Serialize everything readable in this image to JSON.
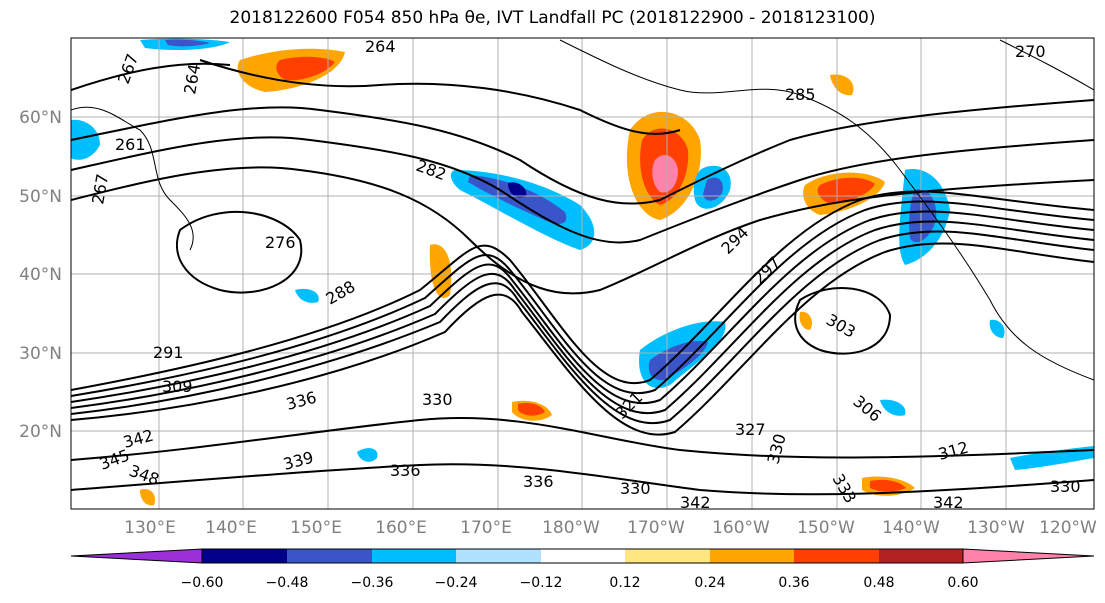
{
  "title": "2018122600 F054 850 hPa θe, IVT Landfall PC (2018122900 - 2018123100)",
  "map": {
    "lat_labels": [
      "60°N",
      "50°N",
      "40°N",
      "30°N",
      "20°N"
    ],
    "lon_labels": [
      "130°E",
      "140°E",
      "150°E",
      "160°E",
      "170°E",
      "180°W",
      "170°W",
      "160°W",
      "150°W",
      "140°W",
      "130°W",
      "120°W"
    ],
    "contour_labels": [
      "264",
      "267",
      "264",
      "261",
      "267",
      "282",
      "276",
      "285",
      "270",
      "288",
      "291",
      "294",
      "297",
      "303",
      "309",
      "306",
      "312",
      "330",
      "336",
      "339",
      "342",
      "345",
      "348",
      "336",
      "330",
      "321",
      "327",
      "330",
      "333",
      "336",
      "342",
      "342",
      "330"
    ],
    "colors": {
      "contour": "#000000",
      "coast": "#000000",
      "grid": "#b0b0b0"
    }
  },
  "colorbar": {
    "colors": [
      "#9b30d9",
      "#00008b",
      "#3a55c9",
      "#00bfff",
      "#b0e2ff",
      "#ffffff",
      "#ffe680",
      "#ffa500",
      "#ff4000",
      "#b22222",
      "#ff82ab"
    ],
    "ticks": [
      "−0.60",
      "−0.48",
      "−0.36",
      "−0.24",
      "−0.12",
      "0.12",
      "0.24",
      "0.36",
      "0.48",
      "0.60"
    ]
  }
}
